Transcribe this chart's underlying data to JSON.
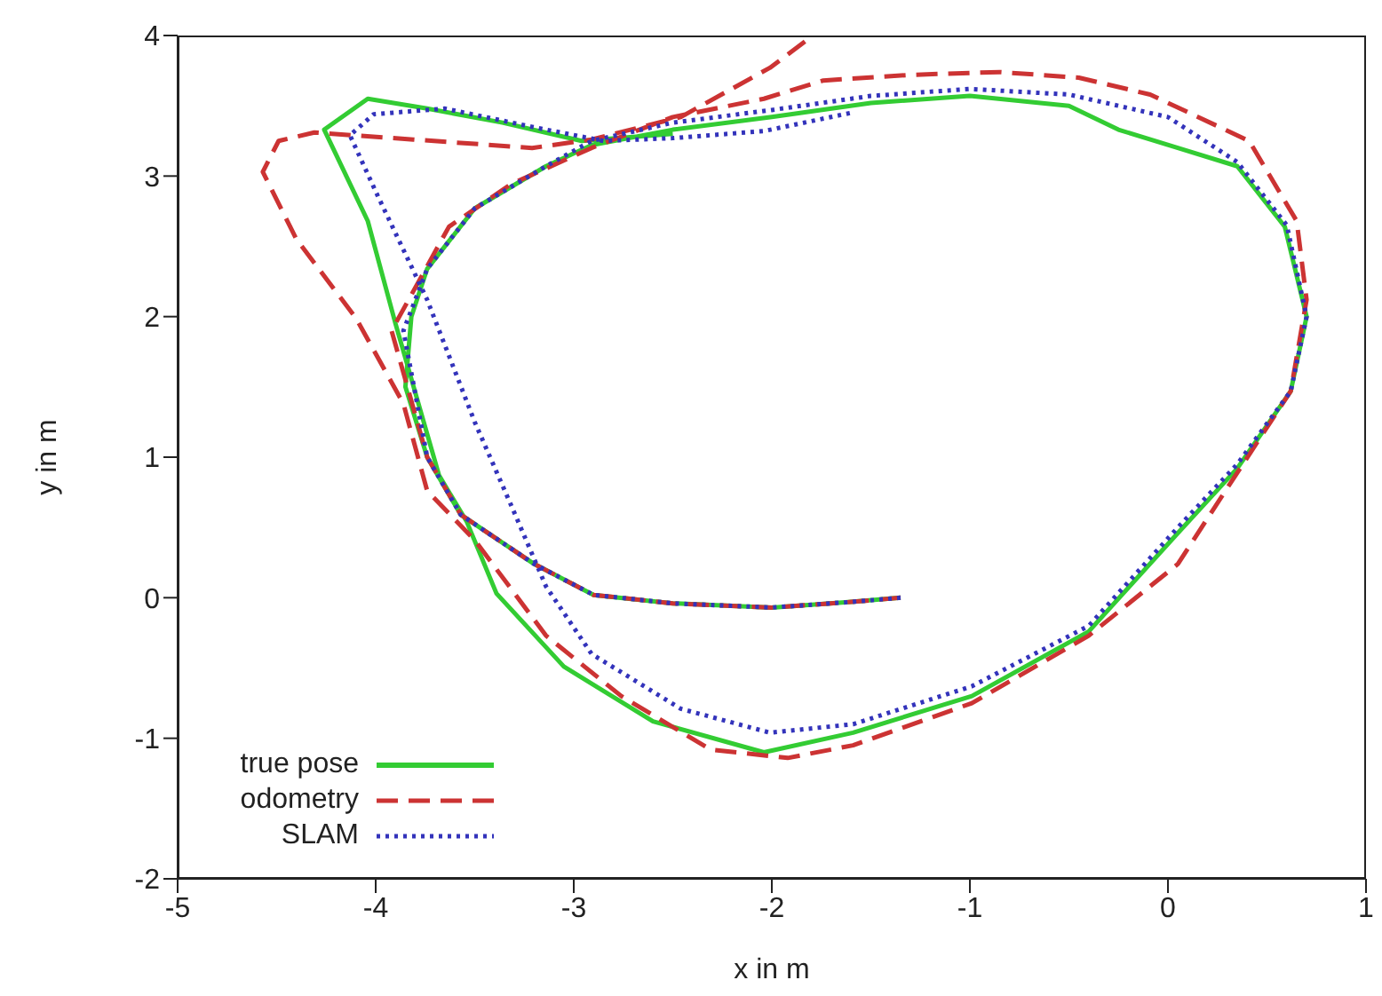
{
  "chart_data": {
    "type": "line",
    "xlabel": "x in m",
    "ylabel": "y in m",
    "xlim": [
      -5,
      1
    ],
    "xticks": [
      -5,
      -4,
      -3,
      -2,
      -1,
      0,
      1
    ],
    "ylim": [
      -2,
      4
    ],
    "yticks": [
      -2,
      -1,
      0,
      1,
      2,
      3,
      4
    ],
    "legend": "bottom left",
    "marker": "none",
    "series": [
      {
        "name": "true pose",
        "color": "#33cc33",
        "line_style": "solid",
        "x": [
          -1.35,
          -1.6,
          -2.0,
          -2.5,
          -2.9,
          -3.2,
          -3.57,
          -3.74,
          -3.85,
          -3.82,
          -3.74,
          -3.5,
          -3.14,
          -2.91,
          -2.5,
          -2.0,
          -1.5,
          -1.0,
          -0.5,
          -0.25,
          0.05,
          0.35,
          0.59,
          0.7,
          0.62,
          0.35,
          0.05,
          -0.4,
          -0.99,
          -1.59,
          -2.04,
          -2.6,
          -3.05,
          -3.39,
          -3.54,
          -3.68,
          -3.9,
          -4.04,
          -4.26,
          -4.04,
          -3.74,
          -3.36,
          -2.96,
          -2.5
        ],
        "values": [
          0.0,
          -0.03,
          -0.07,
          -0.04,
          0.02,
          0.24,
          0.59,
          1.0,
          1.5,
          2.0,
          2.34,
          2.77,
          3.07,
          3.22,
          3.33,
          3.42,
          3.52,
          3.57,
          3.5,
          3.33,
          3.2,
          3.07,
          2.64,
          2.0,
          1.47,
          0.92,
          0.46,
          -0.24,
          -0.7,
          -0.96,
          -1.1,
          -0.88,
          -0.49,
          0.03,
          0.54,
          0.87,
          1.95,
          2.68,
          3.33,
          3.55,
          3.48,
          3.38,
          3.25,
          3.3
        ]
      },
      {
        "name": "odometry",
        "color": "#cc3333",
        "line_style": "dashed",
        "x": [
          -1.35,
          -1.6,
          -2.0,
          -2.5,
          -2.9,
          -3.2,
          -3.57,
          -3.74,
          -3.92,
          -3.63,
          -3.32,
          -2.91,
          -2.5,
          -2.04,
          -1.74,
          -1.3,
          -0.85,
          -0.45,
          -0.09,
          0.41,
          0.65,
          0.7,
          0.62,
          0.29,
          0.05,
          -0.4,
          -0.99,
          -1.59,
          -1.92,
          -2.31,
          -2.76,
          -3.14,
          -3.5,
          -3.74,
          -3.86,
          -4.1,
          -4.4,
          -4.57,
          -4.49,
          -4.31,
          -3.81,
          -3.21,
          -2.91,
          -2.46,
          -2.01,
          -1.82
        ],
        "values": [
          0.0,
          -0.03,
          -0.07,
          -0.04,
          0.02,
          0.24,
          0.59,
          1.0,
          1.9,
          2.64,
          2.94,
          3.2,
          3.42,
          3.55,
          3.68,
          3.72,
          3.74,
          3.7,
          3.58,
          3.25,
          2.68,
          2.12,
          1.47,
          0.76,
          0.24,
          -0.27,
          -0.75,
          -1.05,
          -1.14,
          -1.08,
          -0.7,
          -0.27,
          0.41,
          0.76,
          1.38,
          1.99,
          2.55,
          3.03,
          3.25,
          3.31,
          3.26,
          3.2,
          3.26,
          3.42,
          3.77,
          3.97
        ]
      },
      {
        "name": "SLAM",
        "color": "#3333bb",
        "line_style": "dotted",
        "x": [
          -1.35,
          -1.6,
          -2.0,
          -2.5,
          -2.9,
          -3.2,
          -3.57,
          -3.74,
          -3.86,
          -3.74,
          -3.5,
          -3.14,
          -2.91,
          -2.5,
          -2.0,
          -1.5,
          -1.0,
          -0.5,
          0.0,
          0.35,
          0.6,
          0.7,
          0.62,
          0.35,
          0.05,
          -0.4,
          -0.99,
          -1.59,
          -2.01,
          -2.46,
          -2.91,
          -3.14,
          -3.32,
          -3.5,
          -3.74,
          -3.99,
          -4.13,
          -4.01,
          -3.65,
          -3.21,
          -2.85,
          -2.5,
          -2.04,
          -1.6
        ],
        "values": [
          0.0,
          -0.03,
          -0.07,
          -0.04,
          0.02,
          0.24,
          0.59,
          1.0,
          1.9,
          2.34,
          2.77,
          3.07,
          3.25,
          3.38,
          3.47,
          3.57,
          3.62,
          3.58,
          3.42,
          3.1,
          2.65,
          2.0,
          1.47,
          0.95,
          0.5,
          -0.2,
          -0.63,
          -0.9,
          -0.96,
          -0.79,
          -0.4,
          0.08,
          0.67,
          1.25,
          2.12,
          2.86,
          3.29,
          3.44,
          3.48,
          3.35,
          3.25,
          3.27,
          3.32,
          3.45
        ]
      }
    ]
  }
}
